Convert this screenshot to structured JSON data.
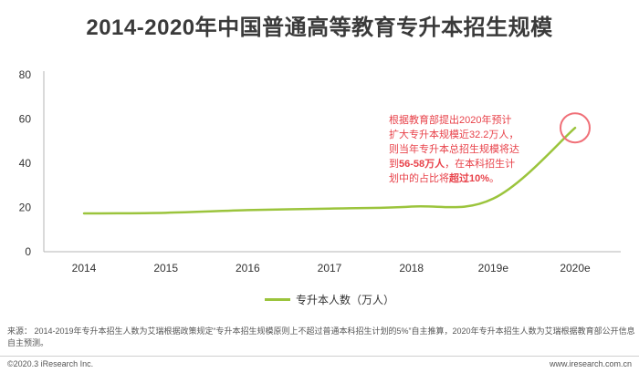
{
  "title": "2014-2020年中国普通高等教育专升本招生规模",
  "chart_data": {
    "type": "line",
    "categories": [
      "2014",
      "2015",
      "2016",
      "2017",
      "2018",
      "2019e",
      "2020e"
    ],
    "series": [
      {
        "name": "专升本人数（万人）",
        "values": [
          17.3,
          17.6,
          18.8,
          19.5,
          20.4,
          24.0,
          56.0
        ]
      }
    ],
    "ylim": [
      0,
      80
    ],
    "yticks": [
      "0",
      "20",
      "40",
      "60",
      "80"
    ],
    "grid": false,
    "legend_position": "bottom",
    "line_color": "#9bc43c",
    "highlight_color": "#f07078"
  },
  "annotation": {
    "line1": "根据教育部提出2020年预计",
    "line2": "扩大专升本规模近32.2万人，",
    "line3": "则当年专升本总招生规模将达",
    "line4_pre": "到",
    "line4_bold": "56-58万人",
    "line4_post": "，在本科招生计",
    "line5_pre": "划中的占比将",
    "line5_bold": "超过10%",
    "line5_post": "。"
  },
  "footer": {
    "note": "来源：  2014-2019年专升本招生人数为艾瑞根据政策规定“专升本招生规模原则上不超过普通本科招生计划的5%”自主推算，2020年专升本招生人数为艾瑞根据教育部公开信息自主预测。",
    "copyright": "©2020.3 iResearch Inc.",
    "site": "www.iresearch.com.cn"
  }
}
